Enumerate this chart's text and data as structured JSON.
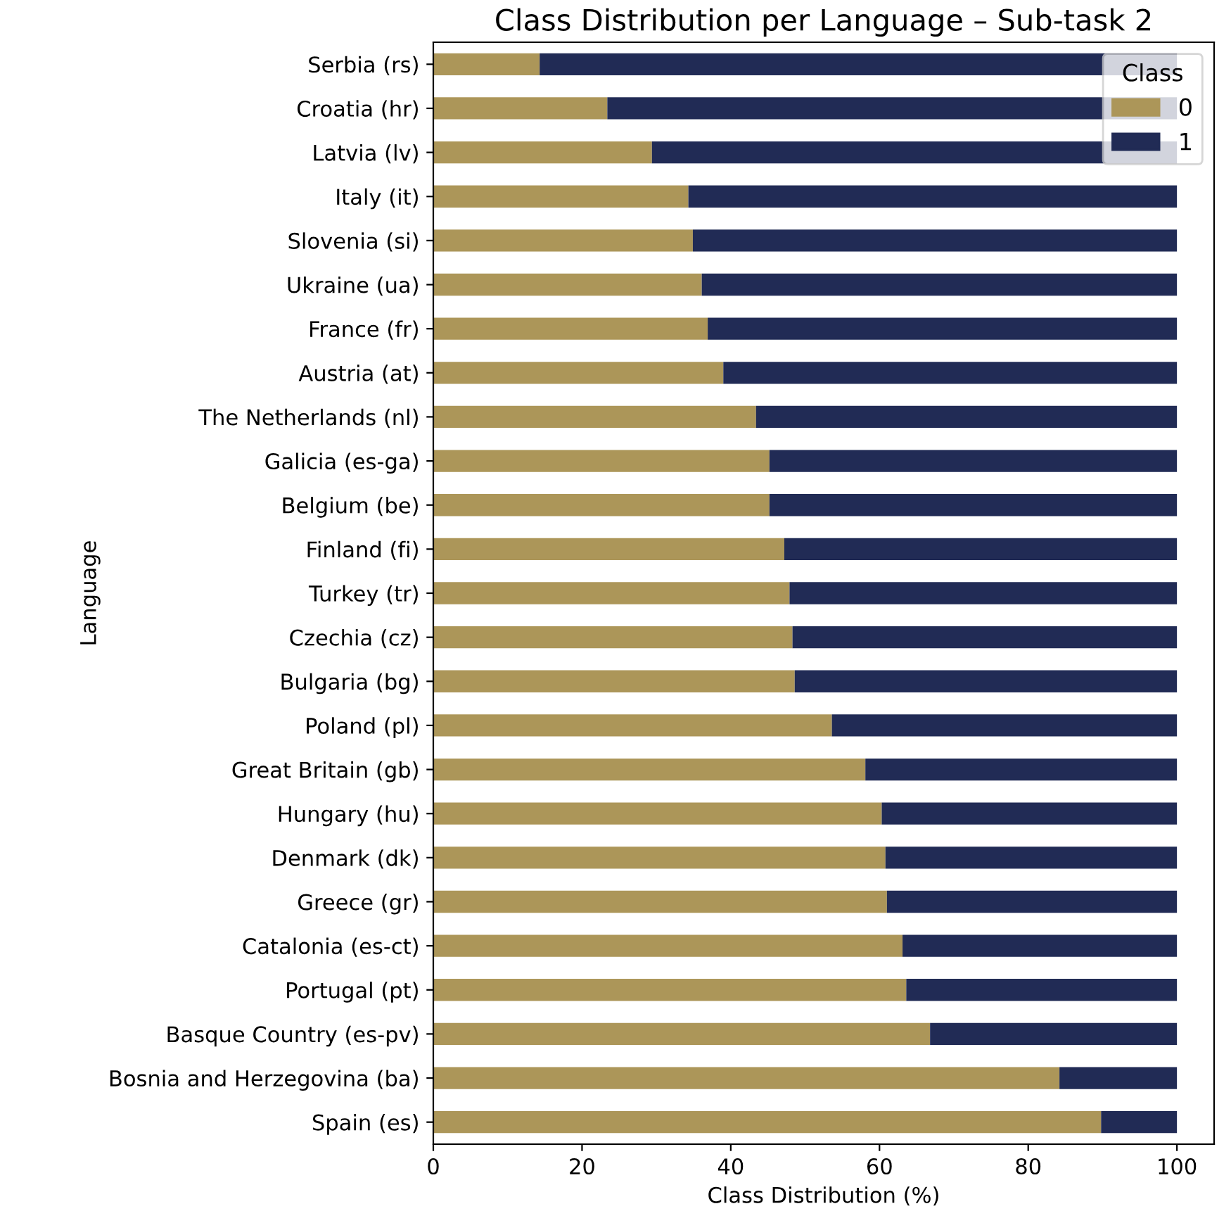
{
  "chart_data": {
    "type": "bar",
    "orientation": "horizontal",
    "stacked": true,
    "title": "Class Distribution per Language – Sub-task 2",
    "xlabel": "Class Distribution (%)",
    "ylabel": "Language",
    "legend_title": "Class",
    "legend": "top right",
    "categories": [
      "Serbia (rs)",
      "Croatia (hr)",
      "Latvia (lv)",
      "Italy (it)",
      "Slovenia (si)",
      "Ukraine (ua)",
      "France (fr)",
      "Austria (at)",
      "The Netherlands (nl)",
      "Galicia (es-ga)",
      "Belgium (be)",
      "Finland (fi)",
      "Turkey (tr)",
      "Czechia (cz)",
      "Bulgaria (bg)",
      "Poland (pl)",
      "Great Britain (gb)",
      "Hungary (hu)",
      "Denmark (dk)",
      "Greece (gr)",
      "Catalonia (es-ct)",
      "Portugal (pt)",
      "Basque Country (es-pv)",
      "Bosnia and Herzegovina (ba)",
      "Spain (es)"
    ],
    "series": [
      {
        "name": "0",
        "color": "#ac9659",
        "values": [
          14.3,
          23.4,
          29.4,
          34.3,
          34.9,
          36.1,
          36.9,
          39.0,
          43.4,
          45.2,
          45.2,
          47.2,
          47.9,
          48.3,
          48.6,
          53.6,
          58.1,
          60.3,
          60.8,
          61.0,
          63.1,
          63.6,
          66.8,
          84.2,
          89.8
        ]
      },
      {
        "name": "1",
        "color": "#212b55",
        "values": [
          85.7,
          76.6,
          70.6,
          65.7,
          65.1,
          63.9,
          63.1,
          61.0,
          56.6,
          54.8,
          54.8,
          52.8,
          52.1,
          51.7,
          51.4,
          46.4,
          41.9,
          39.7,
          39.2,
          39.0,
          36.9,
          36.4,
          33.2,
          15.8,
          10.2
        ]
      }
    ],
    "xlim": [
      0,
      105
    ],
    "xticks": [
      0,
      20,
      40,
      60,
      80,
      100
    ]
  }
}
